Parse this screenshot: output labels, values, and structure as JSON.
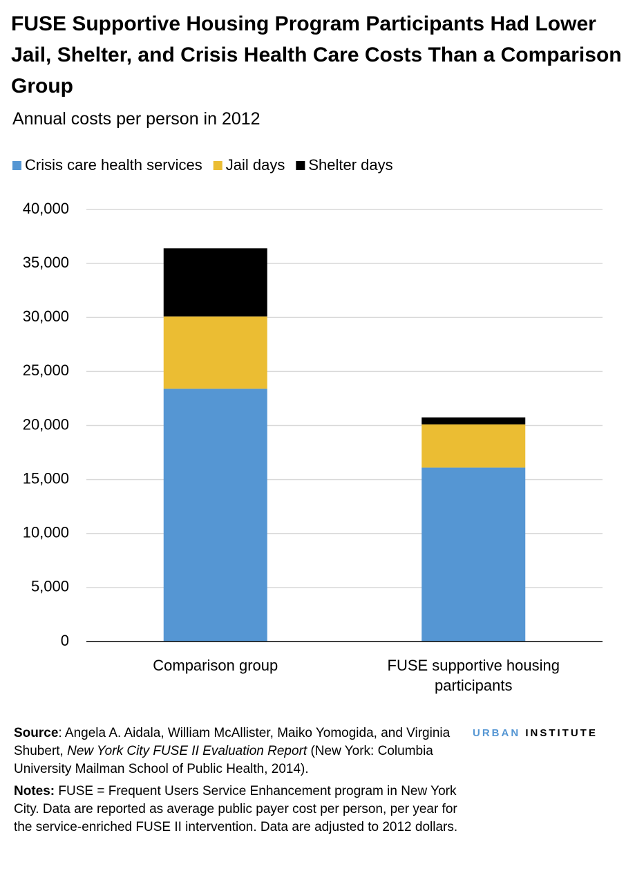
{
  "chart_data": {
    "type": "stacked-bar",
    "title": "FUSE Supportive Housing Program Participants Had Lower Jail, Shelter, and Crisis Health Care Costs Than a Comparison Group",
    "subtitle": "Annual costs per person in 2012",
    "categories": [
      "Comparison group",
      "FUSE supportive housing participants"
    ],
    "series": [
      {
        "name": "Crisis care health services",
        "color": "#5596d3",
        "values": [
          23400,
          16100
        ]
      },
      {
        "name": "Jail days",
        "color": "#ebbd33",
        "values": [
          6700,
          4000
        ]
      },
      {
        "name": "Shelter days",
        "color": "#000000",
        "values": [
          6300,
          650
        ]
      }
    ],
    "ylim": [
      0,
      40000
    ],
    "yticks": [
      0,
      {
        "value": 5000,
        "label": "5,000"
      },
      {
        "value": 10000,
        "label": "10,000"
      },
      {
        "value": 15000,
        "label": "15,000"
      },
      {
        "value": 20000,
        "label": "20,000"
      },
      {
        "value": 25000,
        "label": "25,000"
      },
      {
        "value": 30000,
        "label": "30,000"
      },
      {
        "value": 35000,
        "label": "35,000"
      },
      {
        "value": 40000,
        "label": "40,000"
      }
    ],
    "grid": true,
    "legend": "top"
  },
  "source": {
    "label": "Source",
    "text_before": ": Angela A. Aidala, William McAllister, Maiko Yomogida, and Virginia Shubert, ",
    "title": "New York City FUSE II Evaluation Report",
    "text_after": " (New York: Columbia University Mailman School of Public Health, 2014)."
  },
  "notes": {
    "label": "Notes:",
    "text": " FUSE = Frequent Users Service Enhancement program in New York City. Data are reported as average public payer cost per person, per year for the service-enriched FUSE II intervention. Data are adjusted to 2012 dollars."
  },
  "logo": {
    "left": "URBAN",
    "right": "INSTITUTE"
  }
}
